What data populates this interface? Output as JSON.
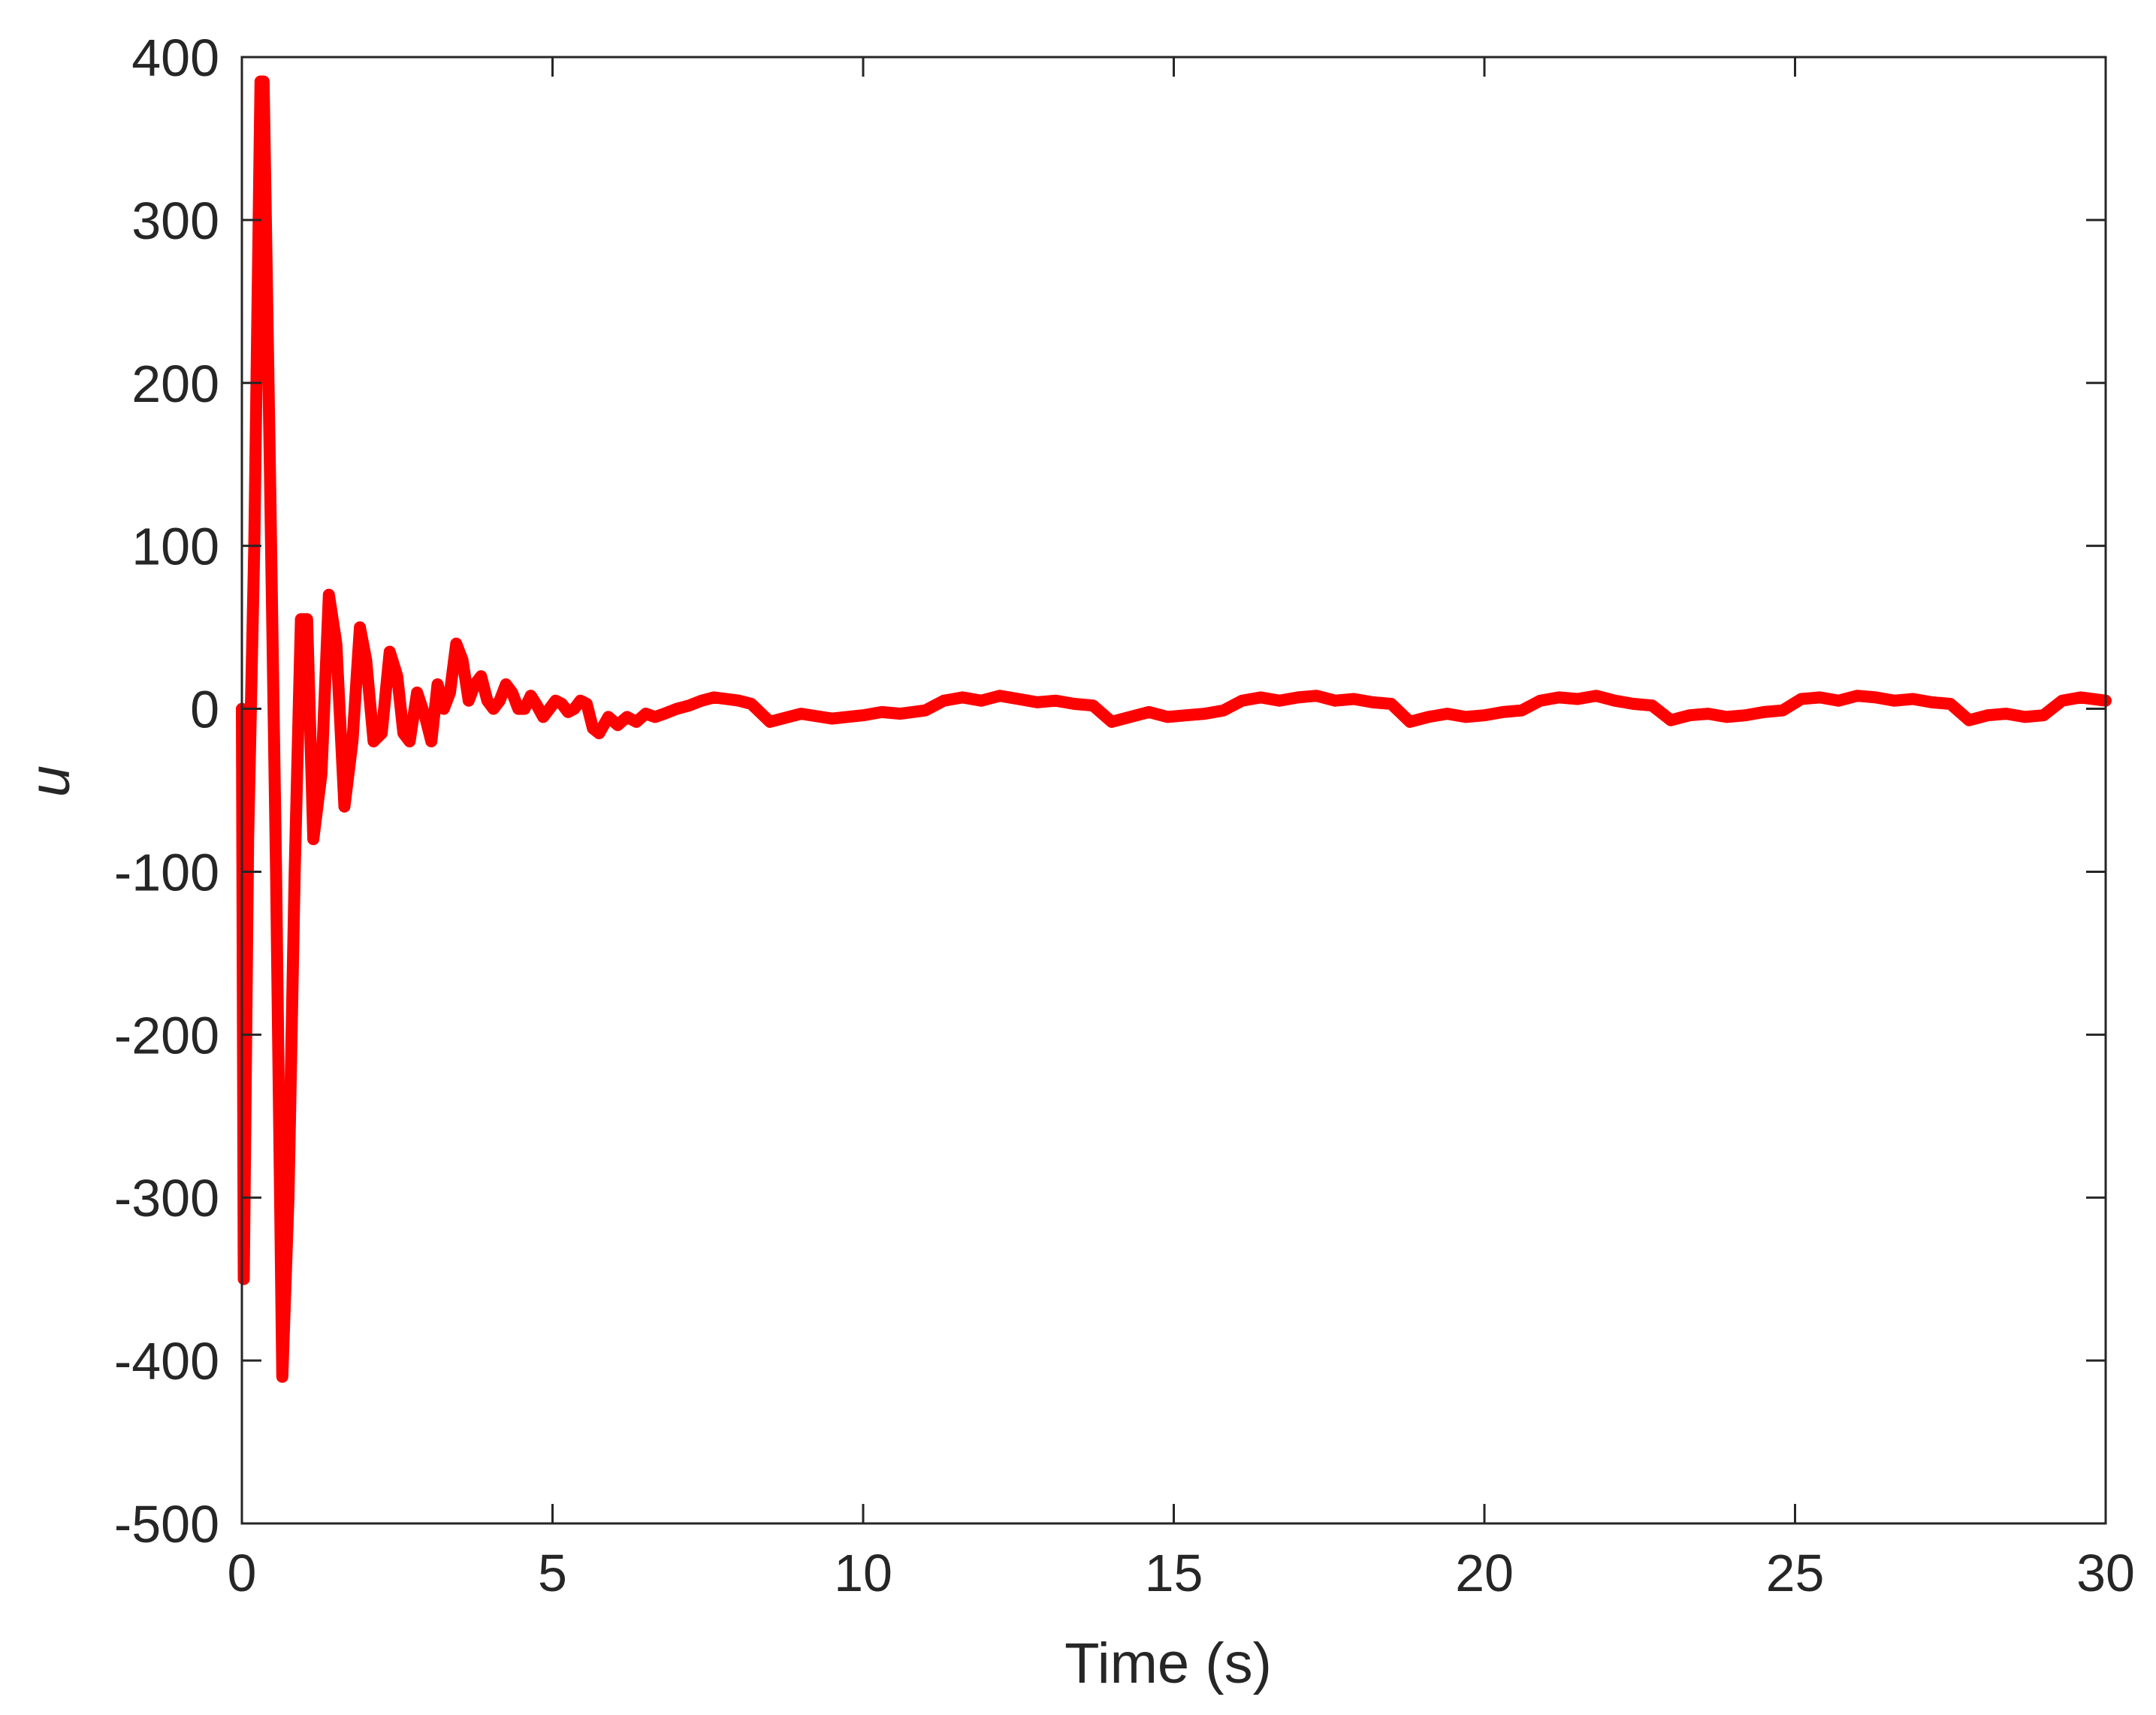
{
  "chart_data": {
    "type": "line",
    "xlabel": "Time (s)",
    "ylabel": "u",
    "xlim": [
      0,
      30
    ],
    "ylim": [
      -500,
      400
    ],
    "xticks": [
      0,
      5,
      10,
      15,
      20,
      25,
      30
    ],
    "yticks": [
      -500,
      -400,
      -300,
      -200,
      -100,
      0,
      100,
      200,
      300,
      400
    ],
    "grid": false,
    "box": true,
    "series": [
      {
        "color": "#ff0000",
        "x": [
          0,
          0.03,
          0.1,
          0.2,
          0.3,
          0.35,
          0.45,
          0.55,
          0.65,
          0.75,
          0.85,
          0.95,
          1.05,
          1.15,
          1.28,
          1.4,
          1.52,
          1.65,
          1.78,
          1.9,
          2.0,
          2.12,
          2.25,
          2.38,
          2.5,
          2.6,
          2.7,
          2.82,
          2.95,
          3.05,
          3.15,
          3.25,
          3.35,
          3.45,
          3.55,
          3.65,
          3.75,
          3.85,
          3.95,
          4.05,
          4.15,
          4.25,
          4.35,
          4.45,
          4.55,
          4.65,
          4.75,
          4.85,
          4.95,
          5.05,
          5.15,
          5.25,
          5.35,
          5.45,
          5.55,
          5.65,
          5.75,
          5.9,
          6.05,
          6.2,
          6.35,
          6.5,
          6.65,
          6.8,
          7.0,
          7.2,
          7.4,
          7.6,
          7.8,
          8.0,
          8.2,
          8.5,
          8.8,
          9.0,
          9.5,
          10.0,
          10.3,
          10.6,
          11.0,
          11.3,
          11.6,
          11.9,
          12.2,
          12.5,
          12.8,
          13.1,
          13.4,
          13.7,
          14.0,
          14.3,
          14.6,
          14.9,
          15.2,
          15.5,
          15.8,
          16.1,
          16.4,
          16.7,
          17.0,
          17.3,
          17.6,
          17.9,
          18.2,
          18.5,
          18.8,
          19.1,
          19.4,
          19.7,
          20.0,
          20.3,
          20.6,
          20.9,
          21.2,
          21.5,
          21.8,
          22.1,
          22.4,
          22.7,
          23.0,
          23.3,
          23.6,
          23.9,
          24.2,
          24.5,
          24.8,
          25.1,
          25.4,
          25.7,
          26.0,
          26.3,
          26.6,
          26.9,
          27.2,
          27.5,
          27.8,
          28.1,
          28.4,
          28.7,
          29.0,
          29.3,
          29.6,
          30.0
        ],
        "y": [
          0,
          -350,
          -80,
          100,
          385,
          385,
          150,
          -100,
          -410,
          -300,
          -100,
          55,
          55,
          -80,
          -40,
          70,
          40,
          -60,
          -20,
          50,
          30,
          -20,
          -15,
          35,
          20,
          -15,
          -20,
          10,
          -5,
          -20,
          15,
          0,
          10,
          40,
          30,
          5,
          15,
          20,
          5,
          0,
          5,
          15,
          10,
          0,
          0,
          8,
          2,
          -5,
          0,
          5,
          3,
          -2,
          0,
          5,
          3,
          -12,
          -15,
          -5,
          -10,
          -5,
          -8,
          -3,
          -5,
          -3,
          0,
          2,
          5,
          7,
          6,
          5,
          3,
          -8,
          -5,
          -3,
          -6,
          -4,
          -2,
          -3,
          -1,
          5,
          7,
          5,
          8,
          6,
          4,
          5,
          3,
          2,
          -8,
          -5,
          -2,
          -5,
          -4,
          -3,
          -1,
          5,
          7,
          5,
          7,
          8,
          5,
          6,
          4,
          3,
          -8,
          -5,
          -3,
          -5,
          -4,
          -2,
          -1,
          5,
          7,
          6,
          8,
          5,
          3,
          2,
          -7,
          -4,
          -3,
          -5,
          -4,
          -2,
          -1,
          6,
          7,
          5,
          8,
          7,
          5,
          6,
          4,
          3,
          -7,
          -4,
          -3,
          -5,
          -4,
          5,
          7,
          5
        ]
      }
    ]
  }
}
